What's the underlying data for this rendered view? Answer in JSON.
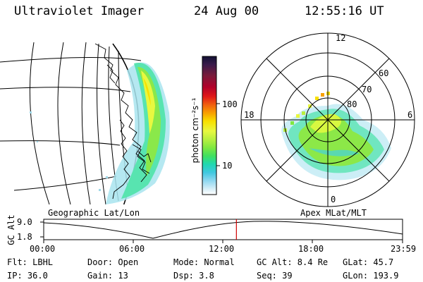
{
  "header": {
    "instrument": "Ultraviolet Imager",
    "date": "24 Aug 00",
    "time": "12:55:16 UT"
  },
  "panels": {
    "geographic_label": "Geographic Lat/Lon",
    "apex_label": "Apex MLat/MLT"
  },
  "colorbar": {
    "unit_label": "photon cm⁻²s⁻¹",
    "ticks": [
      "100",
      "10"
    ],
    "colors": [
      "#111133",
      "#3a1a4a",
      "#7a1a3a",
      "#b0002a",
      "#e01818",
      "#f06010",
      "#f8a000",
      "#f8e000",
      "#e8f840",
      "#b8f040",
      "#80e840",
      "#40e060",
      "#20d8b0",
      "#40c8e0",
      "#90d8f0",
      "#d8f0f8",
      "#ffffff"
    ],
    "scale": "log"
  },
  "polar": {
    "mlt_labels": {
      "top": "12",
      "left": "18",
      "right": "6",
      "bottom": "0"
    },
    "lat_labels": [
      "60",
      "70",
      "80"
    ]
  },
  "altitude_plot": {
    "ylabel": "GC Alt",
    "y_ticks": [
      "9.0",
      "1.8"
    ],
    "x_ticks": [
      "00:00",
      "06:00",
      "12:00",
      "18:00",
      "23:59"
    ],
    "current_time_fraction": 0.537,
    "minimum_time_fraction": 0.305,
    "marker_color": "#d00000"
  },
  "info": {
    "flt": "Flt: LBHL",
    "ip": "IP: 36.0",
    "door": "Door: Open",
    "gain": "Gain: 13",
    "mode": "Mode: Normal",
    "dsp": "Dsp:     3.8",
    "gc_alt": "GC Alt: 8.4 Re",
    "seq": "Seq: 39",
    "glat": "GLat:  45.7",
    "glon": "GLon: 193.9"
  }
}
